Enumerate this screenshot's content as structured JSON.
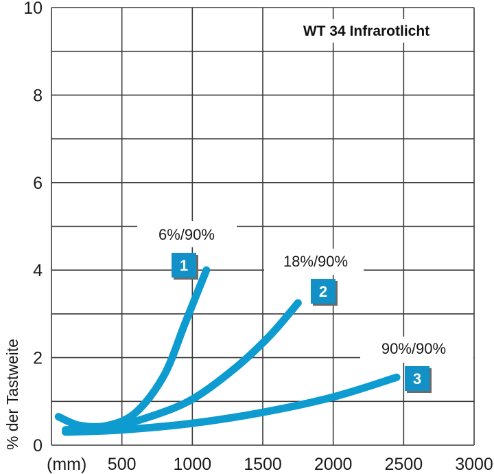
{
  "chart_data": {
    "type": "line",
    "title": "WT 34 Infrarotlicht",
    "xlabel": "(mm)",
    "ylabel": "% der Tastweite",
    "xlim": [
      0,
      3000
    ],
    "ylim": [
      0,
      10
    ],
    "x_ticks": [
      "500",
      "1000",
      "1500",
      "2000",
      "2500",
      "3000"
    ],
    "y_ticks": [
      "0",
      "2",
      "4",
      "6",
      "8",
      "10"
    ],
    "grid": true,
    "legend_position": "inline labels",
    "series": [
      {
        "name": "6%/90%",
        "badge": "1",
        "x": [
          50,
          200,
          400,
          600,
          800,
          950,
          1100
        ],
        "y": [
          0.65,
          0.45,
          0.45,
          0.75,
          1.6,
          2.8,
          4.0
        ]
      },
      {
        "name": "18%/90%",
        "badge": "2",
        "x": [
          100,
          400,
          700,
          1000,
          1300,
          1550,
          1750
        ],
        "y": [
          0.35,
          0.4,
          0.65,
          1.05,
          1.75,
          2.5,
          3.25
        ]
      },
      {
        "name": "90%/90%",
        "badge": "3",
        "x": [
          100,
          500,
          1000,
          1500,
          2000,
          2450
        ],
        "y": [
          0.3,
          0.35,
          0.5,
          0.75,
          1.1,
          1.55
        ]
      }
    ]
  },
  "colors": {
    "curve": "#0e9bd0",
    "grid": "#3a3a3a",
    "badge": "#1191c8"
  }
}
